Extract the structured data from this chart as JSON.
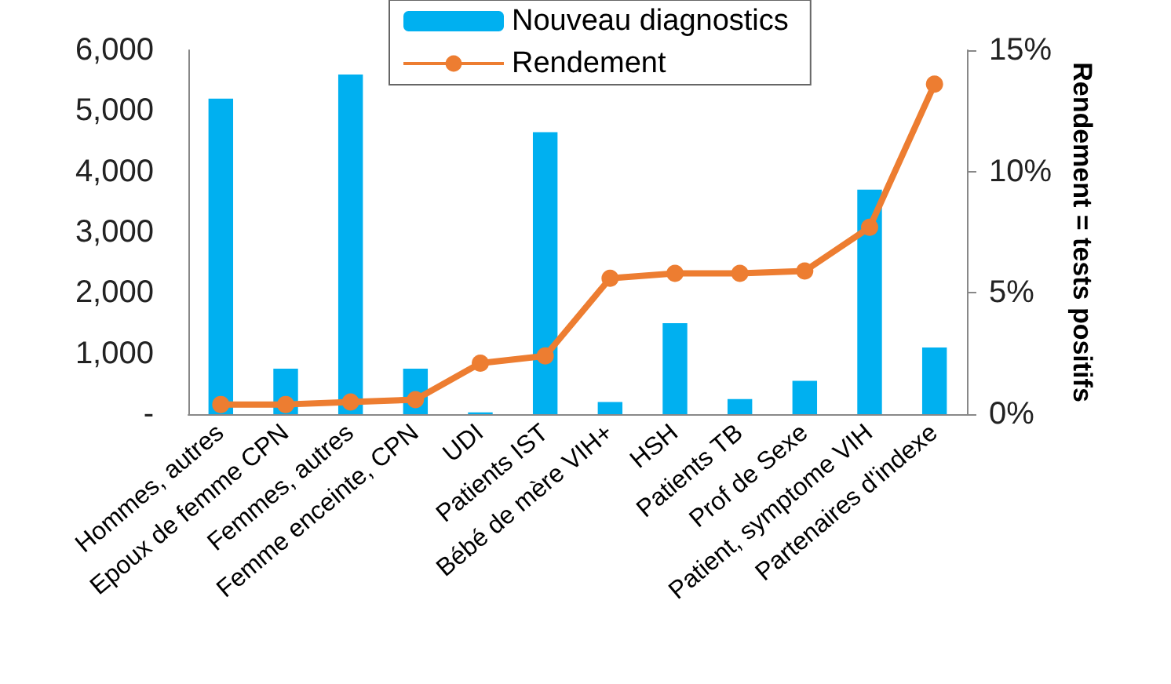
{
  "chart_data": {
    "type": "bar",
    "categories": [
      "Hommes, autres",
      "Epoux de femme CPN",
      "Femmes, autres",
      "Femme enceinte, CPN",
      "UDI",
      "Patients IST",
      "Bébé de mère VIH+",
      "HSH",
      "Patients TB",
      "Prof de Sexe",
      "Patient, symptome VIH",
      "Partenaires d'indexe"
    ],
    "series": [
      {
        "name": "Nouveau diagnostics",
        "color": "#00b0f0",
        "values": [
          5200,
          750,
          5600,
          750,
          30,
          4650,
          200,
          1500,
          250,
          550,
          3700,
          1100
        ]
      },
      {
        "name": "Rendement",
        "type": "line",
        "axis": "y2",
        "color": "#ed7d31",
        "marker": "circle",
        "values": [
          0.4,
          0.4,
          0.5,
          0.6,
          2.1,
          2.4,
          5.6,
          5.8,
          5.8,
          5.9,
          7.7,
          13.6
        ]
      }
    ],
    "y2label": "Rendement = tests positifs",
    "ylim": [
      0,
      6000
    ],
    "yticks": [
      {
        "value": 0,
        "label": "-"
      },
      {
        "value": 1000,
        "label": "1,000"
      },
      {
        "value": 2000,
        "label": "2,000"
      },
      {
        "value": 3000,
        "label": "3,000"
      },
      {
        "value": 4000,
        "label": "4,000"
      },
      {
        "value": 5000,
        "label": "5,000"
      },
      {
        "value": 6000,
        "label": "6,000"
      }
    ],
    "y2lim": [
      0,
      15
    ],
    "y2ticks": [
      {
        "value": 0,
        "label": "0%"
      },
      {
        "value": 5,
        "label": "5%"
      },
      {
        "value": 10,
        "label": "10%"
      },
      {
        "value": 15,
        "label": "15%"
      }
    ],
    "legend": "top",
    "grid": false
  }
}
